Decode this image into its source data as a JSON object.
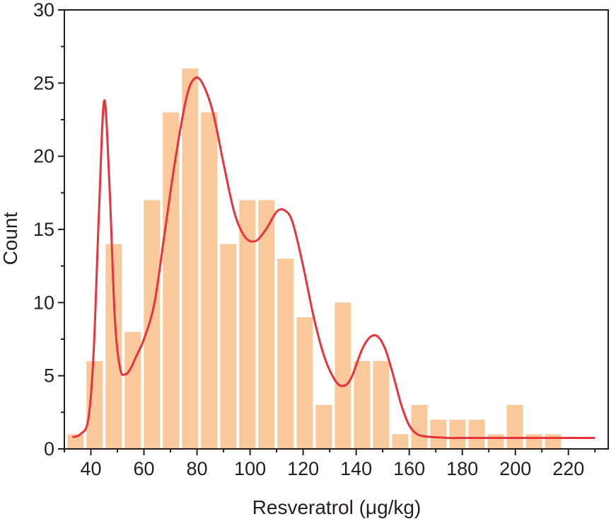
{
  "chart_data": {
    "type": "bar",
    "xlabel": "Resveratrol (μg/kg)",
    "ylabel": "Count",
    "xlim": [
      30,
      235
    ],
    "ylim": [
      0,
      30
    ],
    "grid": false,
    "x_ticks": [
      40,
      60,
      80,
      100,
      120,
      140,
      160,
      180,
      200,
      220
    ],
    "x_tick_labels": [
      "40",
      "60",
      "80",
      "100",
      "120",
      "140",
      "160",
      "180",
      "200",
      "220"
    ],
    "y_ticks": [
      0,
      5,
      10,
      15,
      20,
      25,
      30
    ],
    "y_tick_labels": [
      "0",
      "5",
      "10",
      "15",
      "20",
      "25",
      "30"
    ],
    "bin_width": 7.2,
    "bins": [
      {
        "start": 30.6,
        "count": 1
      },
      {
        "start": 37.8,
        "count": 6
      },
      {
        "start": 45.0,
        "count": 14
      },
      {
        "start": 52.2,
        "count": 8
      },
      {
        "start": 59.4,
        "count": 17
      },
      {
        "start": 66.6,
        "count": 23
      },
      {
        "start": 73.8,
        "count": 26
      },
      {
        "start": 81.0,
        "count": 23
      },
      {
        "start": 88.2,
        "count": 14
      },
      {
        "start": 95.4,
        "count": 17
      },
      {
        "start": 102.6,
        "count": 17
      },
      {
        "start": 109.8,
        "count": 13
      },
      {
        "start": 117.0,
        "count": 9
      },
      {
        "start": 124.2,
        "count": 3
      },
      {
        "start": 131.4,
        "count": 10
      },
      {
        "start": 138.6,
        "count": 6
      },
      {
        "start": 145.8,
        "count": 6
      },
      {
        "start": 153.0,
        "count": 1
      },
      {
        "start": 160.2,
        "count": 3
      },
      {
        "start": 167.4,
        "count": 2
      },
      {
        "start": 174.6,
        "count": 2
      },
      {
        "start": 181.8,
        "count": 2
      },
      {
        "start": 189.0,
        "count": 1
      },
      {
        "start": 196.2,
        "count": 3
      },
      {
        "start": 203.4,
        "count": 1
      },
      {
        "start": 210.6,
        "count": 1
      }
    ],
    "density_curve": {
      "x": [
        33,
        36,
        39,
        41,
        43,
        45,
        47,
        49,
        51,
        53,
        55,
        57,
        60,
        64,
        68,
        72,
        76,
        79,
        82,
        86,
        90,
        94,
        98,
        102,
        106,
        110,
        113,
        116,
        120,
        124,
        128,
        132,
        135,
        138,
        142,
        145,
        148,
        151,
        154,
        157,
        160,
        163,
        166,
        170,
        175,
        180,
        190,
        200,
        210,
        220,
        230
      ],
      "y": [
        0.8,
        1.0,
        2.0,
        6.5,
        16.0,
        23.8,
        18.0,
        9.0,
        5.5,
        5.1,
        5.5,
        6.3,
        7.5,
        10.0,
        15.0,
        20.0,
        24.0,
        25.3,
        25.0,
        23.0,
        19.5,
        16.2,
        14.5,
        14.2,
        15.0,
        16.2,
        16.3,
        15.5,
        12.5,
        9.0,
        6.3,
        4.7,
        4.3,
        4.8,
        6.7,
        7.6,
        7.7,
        6.8,
        5.0,
        3.0,
        1.6,
        1.0,
        0.85,
        0.8,
        0.75,
        0.75,
        0.75,
        0.75,
        0.75,
        0.75,
        0.75
      ]
    },
    "colors": {
      "bar": "#f9c89b",
      "curve": "#e8323c",
      "axis": "#231f20"
    }
  }
}
